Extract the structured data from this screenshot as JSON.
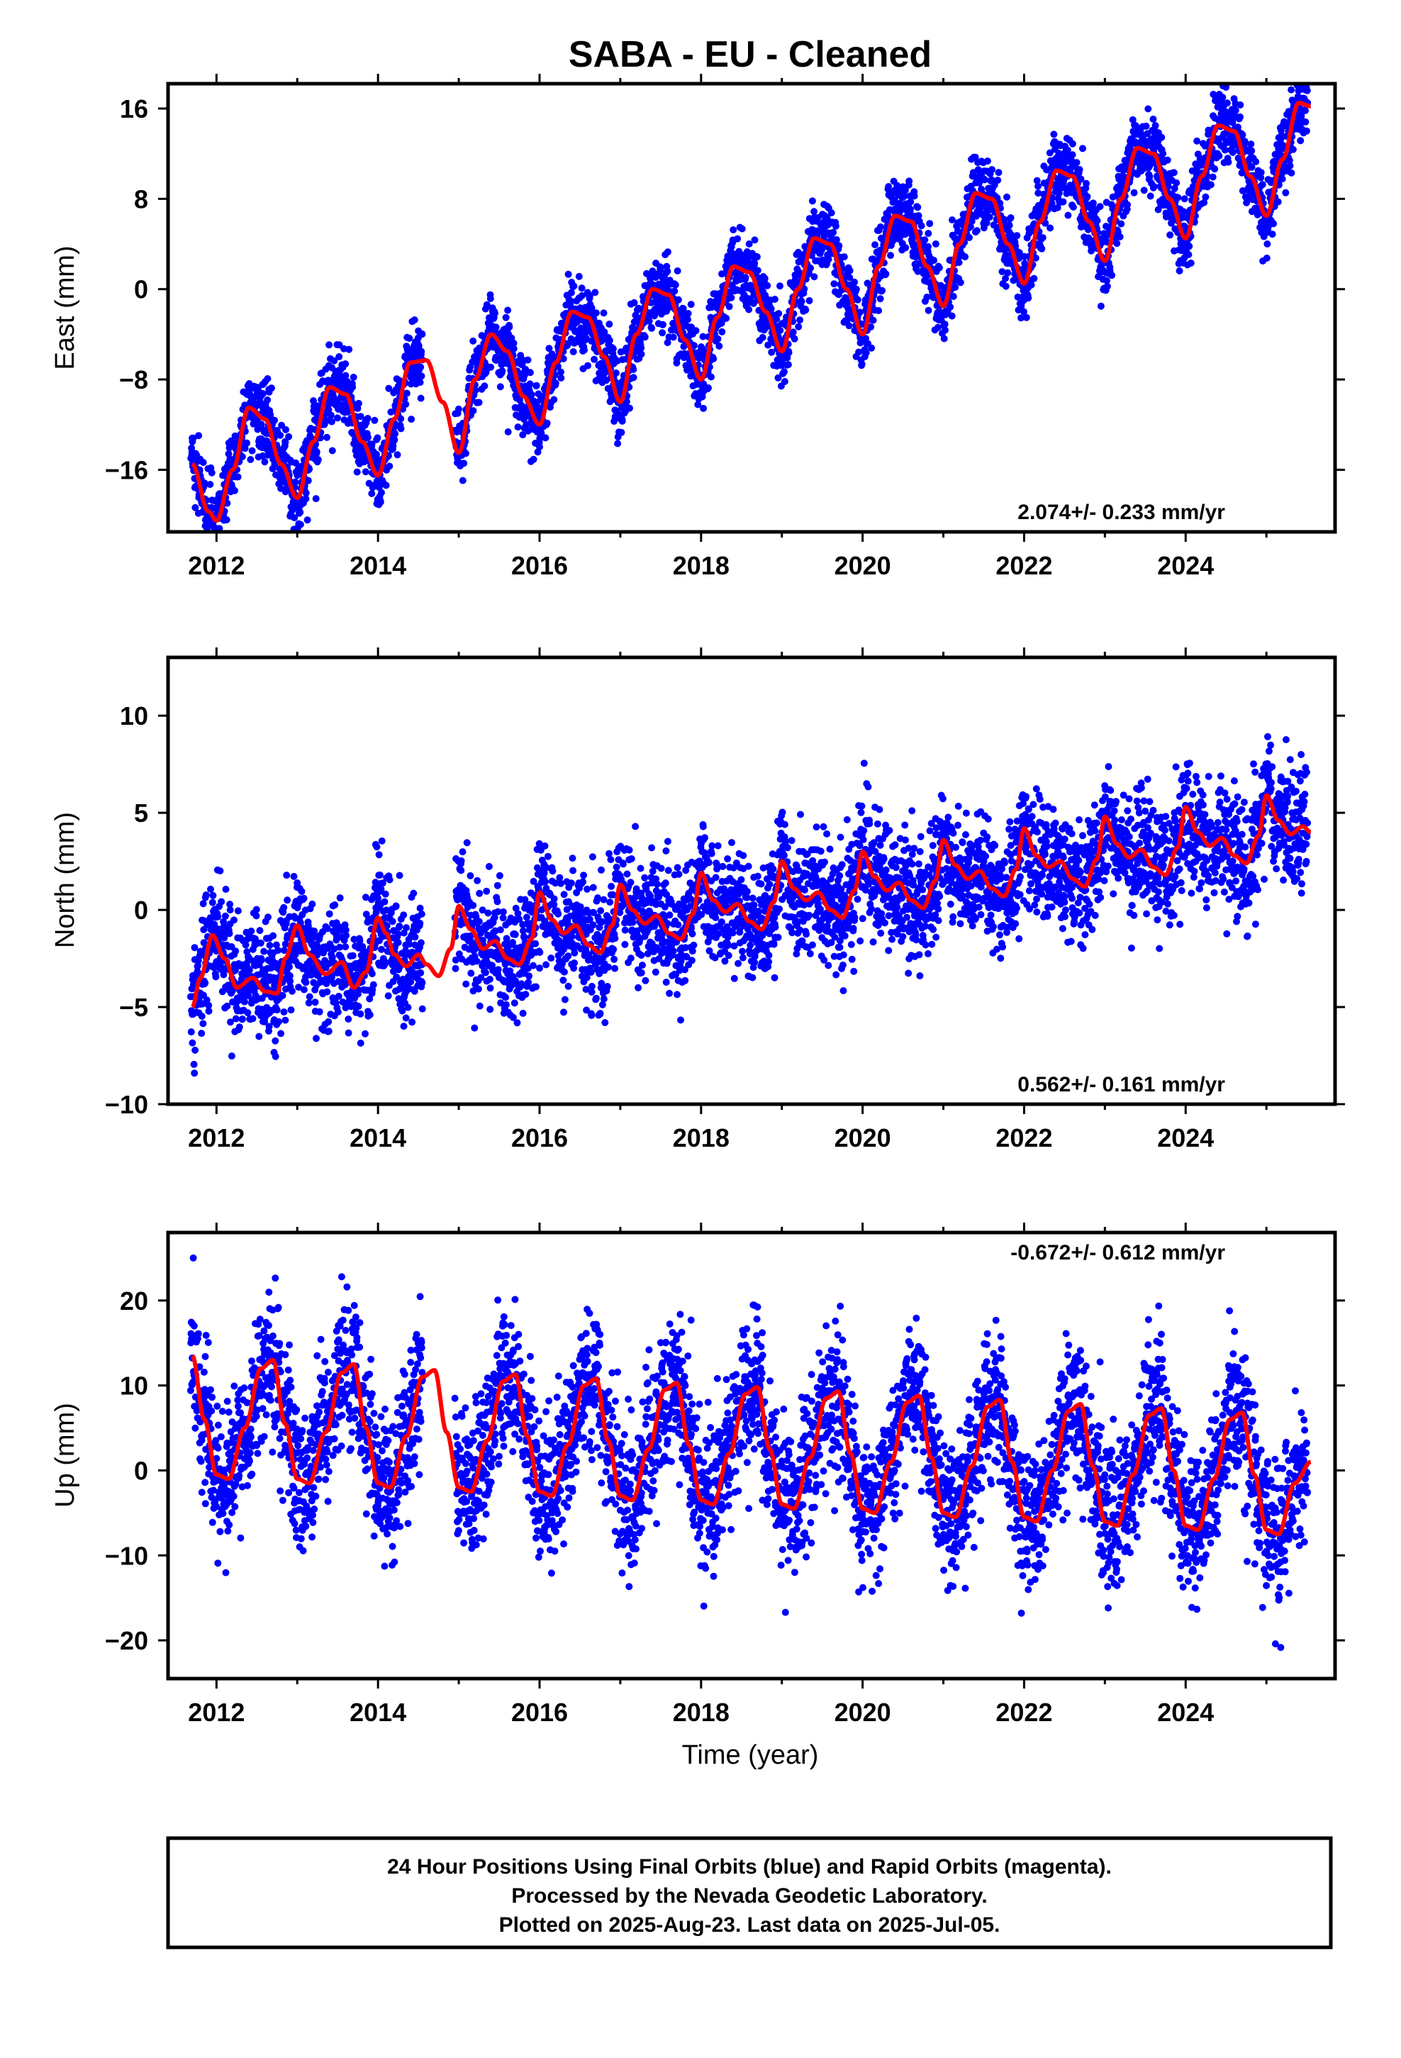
{
  "title": "SABA  - EU - Cleaned",
  "colors": {
    "points": "#0000ff",
    "model": "#ff0000",
    "frame": "#000000"
  },
  "footer": {
    "line1": "24 Hour Positions Using Final Orbits (blue) and Rapid Orbits (magenta).",
    "line2": "Processed by the Nevada Geodetic Laboratory.",
    "line3": "Plotted on 2025-Aug-23. Last data on 2025-Jul-05."
  },
  "chart_data": [
    {
      "type": "scatter",
      "component": "east",
      "ylabel": "East (mm)",
      "xlabel": "",
      "xlim": [
        2011.4,
        2025.85
      ],
      "ylim": [
        -21.5,
        18.2
      ],
      "xticks": [
        2012,
        2014,
        2016,
        2018,
        2020,
        2022,
        2024
      ],
      "yticks": [
        -16,
        -8,
        0,
        8,
        16
      ],
      "rate_text": "2.074+/- 0.233 mm/yr",
      "rate_position": "bottom-right",
      "series": [
        {
          "kind": "scatter",
          "data_start": 2011.68,
          "data_end": 2025.51,
          "gaps": [
            [
              2014.55,
              2014.95
            ]
          ]
        },
        {
          "kind": "line",
          "x": [
            2011.7,
            2011.9,
            2012.0,
            2012.2,
            2012.4,
            2012.6,
            2012.8,
            2013.0,
            2013.2,
            2013.4,
            2013.6,
            2013.8,
            2014.0,
            2014.2,
            2014.4,
            2014.6,
            2014.8,
            2015.0,
            2015.2,
            2015.4,
            2015.6,
            2015.8,
            2016.0,
            2016.2,
            2016.4,
            2016.6,
            2016.8,
            2017.0,
            2017.2,
            2017.4,
            2017.6,
            2017.8,
            2018.0,
            2018.2,
            2018.4,
            2018.6,
            2018.8,
            2019.0,
            2019.2,
            2019.4,
            2019.6,
            2019.8,
            2020.0,
            2020.2,
            2020.4,
            2020.6,
            2020.8,
            2021.0,
            2021.2,
            2021.4,
            2021.6,
            2021.8,
            2022.0,
            2022.2,
            2022.4,
            2022.6,
            2022.8,
            2023.0,
            2023.2,
            2023.4,
            2023.6,
            2023.8,
            2024.0,
            2024.2,
            2024.4,
            2024.6,
            2024.8,
            2025.0,
            2025.2,
            2025.4,
            2025.55
          ],
          "y": [
            -15.5,
            -19.7,
            -20.5,
            -16.0,
            -10.5,
            -11.5,
            -15.5,
            -18.5,
            -13.5,
            -8.7,
            -9.3,
            -13.5,
            -16.5,
            -11.5,
            -6.5,
            -6.3,
            -10.0,
            -14.5,
            -8.0,
            -4.0,
            -5.5,
            -9.5,
            -12.0,
            -6.5,
            -2.0,
            -2.5,
            -6.0,
            -10.0,
            -4.0,
            0.0,
            -0.5,
            -4.5,
            -8.0,
            -2.5,
            2.0,
            1.5,
            -2.0,
            -5.5,
            0.0,
            4.5,
            4.0,
            0.0,
            -4.0,
            2.0,
            6.5,
            6.0,
            2.0,
            -1.5,
            4.0,
            8.5,
            8.0,
            4.0,
            0.5,
            6.0,
            10.5,
            10.0,
            6.0,
            2.5,
            8.0,
            12.5,
            12.0,
            8.0,
            4.5,
            10.0,
            14.5,
            14.0,
            10.0,
            6.5,
            11.5,
            16.5,
            16.2
          ]
        }
      ]
    },
    {
      "type": "scatter",
      "component": "north",
      "ylabel": "North (mm)",
      "xlabel": "",
      "xlim": [
        2011.4,
        2025.85
      ],
      "ylim": [
        -10.0,
        13.0
      ],
      "xticks": [
        2012,
        2014,
        2016,
        2018,
        2020,
        2022,
        2024
      ],
      "yticks": [
        -10,
        -5,
        0,
        5,
        10
      ],
      "rate_text": "0.562+/- 0.161 mm/yr",
      "rate_position": "bottom-right",
      "series": [
        {
          "kind": "scatter",
          "data_start": 2011.68,
          "data_end": 2025.51,
          "gaps": [
            [
              2014.55,
              2014.95
            ]
          ]
        },
        {
          "kind": "line",
          "x": [
            2011.7,
            2011.8,
            2011.95,
            2012.1,
            2012.25,
            2012.45,
            2012.6,
            2012.75,
            2012.85,
            2013.0,
            2013.15,
            2013.35,
            2013.55,
            2013.7,
            2013.85,
            2014.0,
            2014.1,
            2014.2,
            2014.35,
            2014.5,
            2014.6,
            2014.75,
            2014.9,
            2015.0,
            2015.15,
            2015.3,
            2015.45,
            2015.6,
            2015.75,
            2015.9,
            2016.0,
            2016.15,
            2016.3,
            2016.45,
            2016.6,
            2016.75,
            2016.9,
            2017.0,
            2017.15,
            2017.3,
            2017.45,
            2017.6,
            2017.75,
            2017.9,
            2018.0,
            2018.15,
            2018.3,
            2018.45,
            2018.6,
            2018.75,
            2018.9,
            2019.0,
            2019.15,
            2019.3,
            2019.45,
            2019.6,
            2019.75,
            2019.9,
            2020.0,
            2020.15,
            2020.3,
            2020.45,
            2020.6,
            2020.75,
            2020.9,
            2021.0,
            2021.15,
            2021.3,
            2021.45,
            2021.6,
            2021.75,
            2021.9,
            2022.0,
            2022.15,
            2022.3,
            2022.45,
            2022.6,
            2022.75,
            2022.9,
            2023.0,
            2023.15,
            2023.3,
            2023.45,
            2023.6,
            2023.75,
            2023.9,
            2024.0,
            2024.15,
            2024.3,
            2024.45,
            2024.6,
            2024.75,
            2024.9,
            2025.0,
            2025.15,
            2025.3,
            2025.45,
            2025.55
          ],
          "y": [
            -5.0,
            -3.5,
            -1.3,
            -2.5,
            -4.0,
            -3.5,
            -4.2,
            -4.3,
            -2.5,
            -0.8,
            -2.3,
            -3.3,
            -2.7,
            -4.0,
            -3.2,
            -0.4,
            -1.2,
            -2.3,
            -2.9,
            -2.3,
            -2.8,
            -3.4,
            -2.0,
            0.2,
            -1.0,
            -2.0,
            -1.6,
            -2.5,
            -2.8,
            -1.5,
            0.9,
            -0.5,
            -1.2,
            -0.8,
            -1.8,
            -2.2,
            -0.8,
            1.3,
            0.0,
            -0.7,
            -0.3,
            -1.2,
            -1.5,
            -0.2,
            1.9,
            0.5,
            -0.1,
            0.3,
            -0.6,
            -1.0,
            0.4,
            2.5,
            1.1,
            0.5,
            0.9,
            0.0,
            -0.4,
            1.0,
            3.0,
            1.7,
            1.0,
            1.4,
            0.5,
            0.1,
            1.5,
            3.6,
            2.3,
            1.6,
            2.0,
            1.1,
            0.7,
            2.1,
            4.2,
            2.8,
            2.2,
            2.5,
            1.6,
            1.2,
            2.6,
            4.8,
            3.4,
            2.7,
            3.1,
            2.2,
            1.8,
            3.2,
            5.3,
            4.0,
            3.3,
            3.7,
            2.8,
            2.4,
            3.8,
            5.9,
            4.6,
            3.9,
            4.3,
            4.0
          ]
        }
      ]
    },
    {
      "type": "scatter",
      "component": "up",
      "ylabel": "Up (mm)",
      "xlabel": "Time (year)",
      "xlim": [
        2011.4,
        2025.85
      ],
      "ylim": [
        -24.5,
        28.0
      ],
      "xticks": [
        2012,
        2014,
        2016,
        2018,
        2020,
        2022,
        2024
      ],
      "yticks": [
        -20,
        -10,
        0,
        10,
        20
      ],
      "rate_text": "-0.672+/- 0.612 mm/yr",
      "rate_position": "top-right",
      "series": [
        {
          "kind": "scatter",
          "data_start": 2011.68,
          "data_end": 2025.51,
          "gaps": [
            [
              2014.55,
              2014.95
            ]
          ]
        },
        {
          "kind": "line",
          "x": [
            2011.7,
            2011.85,
            2012.0,
            2012.15,
            2012.35,
            2012.55,
            2012.7,
            2012.85,
            2013.0,
            2013.15,
            2013.35,
            2013.55,
            2013.7,
            2013.85,
            2014.0,
            2014.15,
            2014.35,
            2014.55,
            2014.7,
            2014.85,
            2015.0,
            2015.15,
            2015.35,
            2015.55,
            2015.7,
            2015.85,
            2016.0,
            2016.15,
            2016.35,
            2016.55,
            2016.7,
            2016.85,
            2017.0,
            2017.15,
            2017.35,
            2017.55,
            2017.7,
            2017.85,
            2018.0,
            2018.15,
            2018.35,
            2018.55,
            2018.7,
            2018.85,
            2019.0,
            2019.15,
            2019.35,
            2019.55,
            2019.7,
            2019.85,
            2020.0,
            2020.15,
            2020.35,
            2020.55,
            2020.7,
            2020.85,
            2021.0,
            2021.15,
            2021.35,
            2021.55,
            2021.7,
            2021.85,
            2022.0,
            2022.15,
            2022.35,
            2022.55,
            2022.7,
            2022.85,
            2023.0,
            2023.15,
            2023.35,
            2023.55,
            2023.7,
            2023.85,
            2024.0,
            2024.15,
            2024.35,
            2024.55,
            2024.7,
            2024.85,
            2025.0,
            2025.15,
            2025.35,
            2025.55
          ],
          "y": [
            13.5,
            6.0,
            -0.5,
            -1.0,
            5.0,
            12.0,
            13.0,
            5.5,
            -1.0,
            -1.5,
            4.5,
            11.5,
            12.5,
            5.0,
            -1.5,
            -2.0,
            4.0,
            11.0,
            11.8,
            4.5,
            -2.0,
            -2.5,
            3.5,
            10.5,
            11.3,
            4.0,
            -2.5,
            -3.0,
            3.0,
            10.0,
            10.8,
            3.5,
            -3.0,
            -3.5,
            2.5,
            9.5,
            10.3,
            3.0,
            -3.5,
            -4.0,
            2.0,
            9.0,
            9.8,
            2.5,
            -4.0,
            -4.5,
            1.5,
            8.5,
            9.3,
            2.0,
            -4.5,
            -5.0,
            1.0,
            8.0,
            8.8,
            1.5,
            -5.0,
            -5.5,
            0.5,
            7.5,
            8.3,
            1.0,
            -5.5,
            -6.0,
            0.0,
            7.0,
            7.8,
            0.5,
            -6.0,
            -6.5,
            -0.5,
            6.5,
            7.3,
            0.0,
            -6.5,
            -7.0,
            -1.0,
            6.0,
            6.8,
            -0.5,
            -7.0,
            -7.5,
            -1.5,
            1.0
          ]
        }
      ]
    }
  ]
}
